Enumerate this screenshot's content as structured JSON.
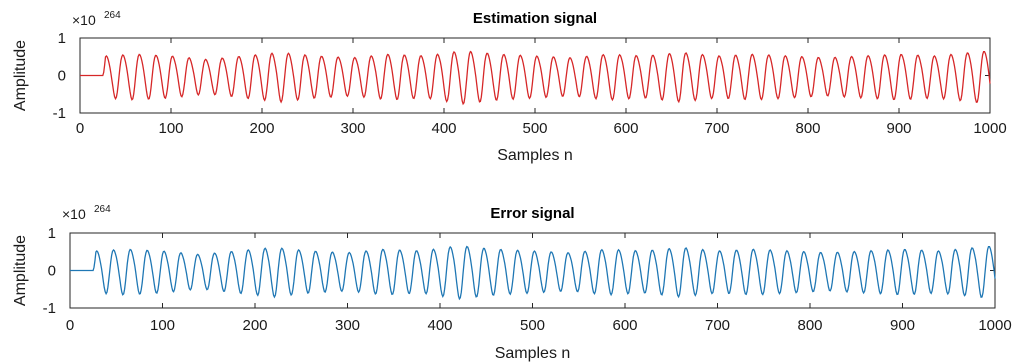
{
  "chart_data": [
    {
      "type": "line",
      "title": "Estimation signal",
      "xlabel": "Samples n",
      "ylabel": "Amplitude",
      "exponent_label": "×10",
      "exponent_power": "264",
      "xlim": [
        0,
        1000
      ],
      "ylim": [
        -1,
        1
      ],
      "xticks": [
        0,
        100,
        200,
        300,
        400,
        500,
        600,
        700,
        800,
        900,
        1000
      ],
      "yticks": [
        -1,
        0,
        1
      ],
      "color": "#d62728",
      "series": [
        {
          "period": 18.2,
          "x": [
            0,
            25,
            28,
            60,
            100,
            140,
            180,
            220,
            260,
            300,
            340,
            380,
            420,
            460,
            500,
            540,
            580,
            620,
            660,
            700,
            740,
            780,
            820,
            860,
            900,
            940,
            980,
            1000
          ],
          "y": [
            0,
            0,
            0.55,
            0.6,
            0.55,
            0.45,
            0.55,
            0.65,
            0.55,
            0.5,
            0.6,
            0.55,
            0.7,
            0.6,
            0.55,
            0.5,
            0.6,
            0.55,
            0.65,
            0.55,
            0.6,
            0.55,
            0.5,
            0.55,
            0.6,
            0.55,
            0.65,
            0.7
          ]
        }
      ]
    },
    {
      "type": "line",
      "title": "Error signal",
      "xlabel": "Samples n",
      "ylabel": "Amplitude",
      "exponent_label": "×10",
      "exponent_power": "264",
      "xlim": [
        0,
        1000
      ],
      "ylim": [
        -1,
        1
      ],
      "xticks": [
        0,
        100,
        200,
        300,
        400,
        500,
        600,
        700,
        800,
        900,
        1000
      ],
      "yticks": [
        -1,
        0,
        1
      ],
      "color": "#1f77b4",
      "series": [
        {
          "period": 18.2,
          "x": [
            0,
            25,
            28,
            60,
            100,
            140,
            180,
            220,
            260,
            300,
            340,
            380,
            420,
            460,
            500,
            540,
            580,
            620,
            660,
            700,
            740,
            780,
            820,
            860,
            900,
            940,
            980,
            1000
          ],
          "y": [
            0,
            0,
            0.55,
            0.6,
            0.55,
            0.45,
            0.55,
            0.65,
            0.55,
            0.5,
            0.6,
            0.55,
            0.7,
            0.6,
            0.55,
            0.5,
            0.6,
            0.55,
            0.65,
            0.55,
            0.6,
            0.55,
            0.5,
            0.55,
            0.6,
            0.55,
            0.65,
            0.7
          ]
        }
      ]
    }
  ]
}
